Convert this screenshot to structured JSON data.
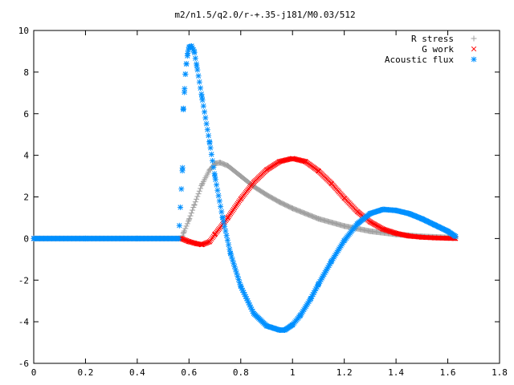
{
  "chart_data": {
    "type": "scatter",
    "title": "m2/n1.5/q2.0/r-+.35-j181/M0.03/512",
    "xlabel": "",
    "ylabel": "",
    "xlim": [
      0,
      1.8
    ],
    "ylim": [
      -6,
      10
    ],
    "x_ticks": [
      "0",
      "0.2",
      "0.4",
      "0.6",
      "0.8",
      "1",
      "1.2",
      "1.4",
      "1.6",
      "1.8"
    ],
    "y_ticks": [
      "-6",
      "-4",
      "-2",
      "0",
      "2",
      "4",
      "6",
      "8",
      "10"
    ],
    "grid": false,
    "legend_position": "top-right",
    "series": [
      {
        "name": "R stress",
        "marker": "plus",
        "color": "#a0a0a0",
        "x": [
          0.0,
          0.2,
          0.4,
          0.57,
          0.58,
          0.6,
          0.62,
          0.65,
          0.68,
          0.7,
          0.72,
          0.75,
          0.8,
          0.85,
          0.9,
          0.95,
          1.0,
          1.1,
          1.2,
          1.3,
          1.4,
          1.5,
          1.6,
          1.63
        ],
        "y": [
          0.0,
          0.0,
          0.0,
          0.0,
          0.3,
          0.9,
          1.6,
          2.6,
          3.3,
          3.6,
          3.65,
          3.5,
          3.0,
          2.5,
          2.1,
          1.75,
          1.45,
          0.95,
          0.6,
          0.35,
          0.2,
          0.1,
          0.05,
          0.02
        ]
      },
      {
        "name": "G work",
        "marker": "cross",
        "color": "#ff0000",
        "x": [
          0.0,
          0.57,
          0.6,
          0.63,
          0.65,
          0.68,
          0.7,
          0.75,
          0.8,
          0.85,
          0.9,
          0.95,
          1.0,
          1.05,
          1.1,
          1.15,
          1.2,
          1.25,
          1.3,
          1.35,
          1.4,
          1.45,
          1.5,
          1.55,
          1.6,
          1.63
        ],
        "y": [
          0.0,
          0.0,
          -0.15,
          -0.25,
          -0.3,
          -0.15,
          0.2,
          1.0,
          1.9,
          2.7,
          3.3,
          3.7,
          3.85,
          3.7,
          3.25,
          2.65,
          1.95,
          1.3,
          0.8,
          0.45,
          0.25,
          0.12,
          0.06,
          0.03,
          0.01,
          0.0
        ]
      },
      {
        "name": "Acoustic flux",
        "marker": "star",
        "color": "#0090ff",
        "x": [
          0.0,
          0.2,
          0.4,
          0.56,
          0.575,
          0.578,
          0.583,
          0.586,
          0.59,
          0.595,
          0.6,
          0.61,
          0.62,
          0.63,
          0.65,
          0.68,
          0.7,
          0.73,
          0.76,
          0.8,
          0.85,
          0.9,
          0.95,
          0.97,
          1.0,
          1.03,
          1.07,
          1.1,
          1.15,
          1.2,
          1.25,
          1.3,
          1.35,
          1.4,
          1.45,
          1.5,
          1.55,
          1.6,
          1.63
        ],
        "y": [
          0.0,
          0.0,
          0.0,
          0.0,
          3.4,
          6.2,
          7.2,
          7.9,
          8.4,
          8.9,
          9.2,
          9.25,
          9.0,
          8.3,
          6.8,
          4.6,
          3.0,
          1.0,
          -0.7,
          -2.3,
          -3.6,
          -4.2,
          -4.4,
          -4.4,
          -4.15,
          -3.7,
          -2.9,
          -2.2,
          -1.1,
          -0.1,
          0.7,
          1.2,
          1.4,
          1.35,
          1.2,
          0.95,
          0.65,
          0.35,
          0.1
        ]
      }
    ]
  }
}
